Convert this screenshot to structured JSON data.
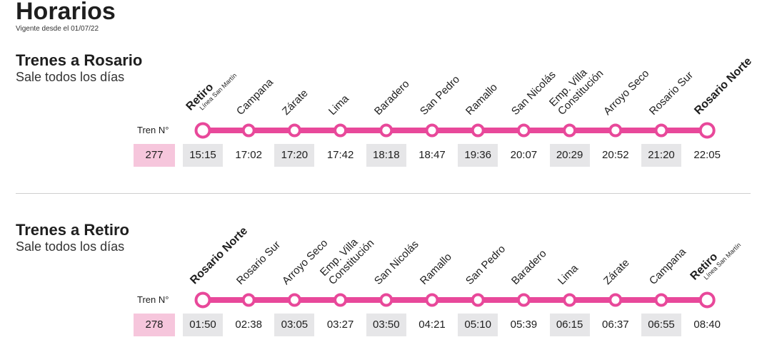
{
  "header": {
    "title": "Horarios",
    "subtitle": "Vigente desde el 01/07/22"
  },
  "colors": {
    "line": "#e8489a",
    "train_box": "#f6c6dc",
    "shaded_cell": "#e6e6e8"
  },
  "train_label": "Tren N°",
  "sections": [
    {
      "title": "Trenes a Rosario",
      "subtitle": "Sale todos los días",
      "train_number": "277",
      "stations": [
        {
          "name": "Retiro",
          "sub": "Línea San Martín",
          "terminal": true
        },
        {
          "name": "Campana"
        },
        {
          "name": "Zárate"
        },
        {
          "name": "Lima"
        },
        {
          "name": "Baradero"
        },
        {
          "name": "San Pedro"
        },
        {
          "name": "Ramallo"
        },
        {
          "name": "San Nicolás"
        },
        {
          "name": "Emp. Villa",
          "name2": "Constitución"
        },
        {
          "name": "Arroyo Seco"
        },
        {
          "name": "Rosario Sur"
        },
        {
          "name": "Rosario Norte",
          "terminal": true
        }
      ],
      "times": [
        "15:15",
        "17:02",
        "17:20",
        "17:42",
        "18:18",
        "18:47",
        "19:36",
        "20:07",
        "20:29",
        "20:52",
        "21:20",
        "22:05"
      ]
    },
    {
      "title": "Trenes a Retiro",
      "subtitle": "Sale todos los días",
      "train_number": "278",
      "stations": [
        {
          "name": "Rosario Norte",
          "terminal": true
        },
        {
          "name": "Rosario Sur"
        },
        {
          "name": "Arroyo Seco"
        },
        {
          "name": "Emp. Villa",
          "name2": "Constitución"
        },
        {
          "name": "San Nicolás"
        },
        {
          "name": "Ramallo"
        },
        {
          "name": "San Pedro"
        },
        {
          "name": "Baradero"
        },
        {
          "name": "Lima"
        },
        {
          "name": "Zárate"
        },
        {
          "name": "Campana"
        },
        {
          "name": "Retiro",
          "sub": "Línea San Martín",
          "terminal": true
        }
      ],
      "times": [
        "01:50",
        "02:38",
        "03:05",
        "03:27",
        "03:50",
        "04:21",
        "05:10",
        "05:39",
        "06:15",
        "06:37",
        "06:55",
        "08:40"
      ]
    }
  ]
}
